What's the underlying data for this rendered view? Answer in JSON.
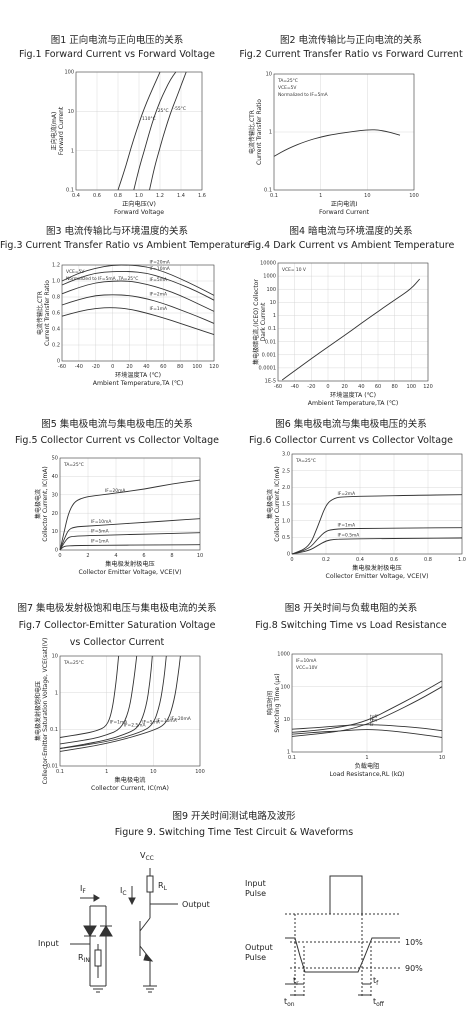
{
  "chart_data": [
    {
      "id": "fig1",
      "type": "line",
      "title_cn": "图1 正向电流与正向电压的关系",
      "title": "Fig.1 Forward Current vs Forward Voltage",
      "ylabel_cn": "正向电流(mA)",
      "ylabel": "Forward Current",
      "xlabel_cn": "正向电压(V)",
      "xlabel": "Forward Voltage",
      "xlim": [
        0.4,
        1.6
      ],
      "ylim": [
        0.1,
        100
      ],
      "yscale": "log",
      "x_ticks": [
        "0.4",
        "0.6",
        "0.8",
        "1.0",
        "1.2",
        "1.4",
        "1.6"
      ],
      "y_ticks": [
        "0.1",
        "1",
        "10",
        "100"
      ],
      "series": [
        {
          "name": "110°C",
          "x": [
            0.8,
            0.85,
            0.9,
            0.95,
            1.0,
            1.05,
            1.1,
            1.15,
            1.2
          ],
          "y": [
            0.1,
            0.25,
            0.7,
            2,
            5,
            12,
            25,
            50,
            100
          ]
        },
        {
          "name": "25°C",
          "x": [
            0.95,
            1.0,
            1.05,
            1.1,
            1.15,
            1.2,
            1.25,
            1.3,
            1.35
          ],
          "y": [
            0.1,
            0.35,
            1,
            3,
            8,
            18,
            35,
            65,
            100
          ]
        },
        {
          "name": "-55°C",
          "x": [
            1.1,
            1.15,
            1.2,
            1.25,
            1.3,
            1.35,
            1.4,
            1.45
          ],
          "y": [
            0.1,
            0.4,
            1.2,
            3.5,
            9,
            20,
            45,
            100
          ]
        }
      ]
    },
    {
      "id": "fig2",
      "type": "line",
      "title_cn": "图2 电流传输比与正向电流的关系",
      "title": "Fig.2  Current Transfer Ratio vs Forward Current",
      "ylabel_cn": "电流传输比,CTR",
      "ylabel": "Current Transfer Ratio",
      "xlabel_cn": "正向电流I",
      "xlabel": "Forward Current",
      "xlim": [
        0.1,
        100
      ],
      "xscale": "log",
      "ylim": [
        0.1,
        10
      ],
      "yscale": "log",
      "x_ticks": [
        "0.1",
        "1",
        "10",
        "100"
      ],
      "y_ticks": [
        "0.1",
        "1",
        "10"
      ],
      "annotations": [
        "TA=25°C",
        "VCE=5V",
        "Normalized to IF=5mA"
      ],
      "series": [
        {
          "name": "CTR",
          "x": [
            0.1,
            0.2,
            0.5,
            1,
            2,
            5,
            10,
            20,
            50
          ],
          "y": [
            0.38,
            0.52,
            0.7,
            0.82,
            0.92,
            1.02,
            1.1,
            1.08,
            0.88
          ]
        }
      ]
    },
    {
      "id": "fig3",
      "type": "line",
      "title_cn": "图3 电流传输比与环境温度的关系",
      "title": "Fig.3 Current Transfer Ratio vs  Ambient Temperature",
      "ylabel_cn": "电流传输比,CTR",
      "ylabel": "Current Transfer Ratio",
      "xlabel_cn": "环境温度TA (℃)",
      "xlabel": "Ambient Temperature,TA (℃)",
      "xlim": [
        -60,
        120
      ],
      "ylim": [
        0,
        1.2
      ],
      "x_ticks": [
        "-60",
        "-40",
        "-20",
        "0",
        "20",
        "40",
        "60",
        "80",
        "100",
        "120"
      ],
      "y_ticks": [
        "0",
        "0.2",
        "0.4",
        "0.6",
        "0.8",
        "1.0",
        "1.2"
      ],
      "annotations": [
        "VCE=5V",
        "Normalized to IF=5mA ,TA=25°C"
      ],
      "series": [
        {
          "name": "IF=20mA",
          "x": [
            -60,
            -40,
            -20,
            0,
            20,
            40,
            60,
            80,
            100,
            120
          ],
          "y": [
            1.0,
            1.1,
            1.16,
            1.2,
            1.2,
            1.18,
            1.12,
            1.03,
            0.93,
            0.82
          ]
        },
        {
          "name": "IF=10mA",
          "x": [
            -60,
            -40,
            -20,
            0,
            20,
            40,
            60,
            80,
            100,
            120
          ],
          "y": [
            0.95,
            1.04,
            1.1,
            1.12,
            1.12,
            1.1,
            1.04,
            0.96,
            0.87,
            0.76
          ]
        },
        {
          "name": "IF=5mA",
          "x": [
            -60,
            -40,
            -20,
            0,
            20,
            40,
            60,
            80,
            100,
            120
          ],
          "y": [
            0.84,
            0.92,
            0.98,
            1.0,
            1.0,
            0.96,
            0.9,
            0.82,
            0.72,
            0.62
          ]
        },
        {
          "name": "IF=2mA",
          "x": [
            -60,
            -40,
            -20,
            0,
            20,
            40,
            60,
            80,
            100,
            120
          ],
          "y": [
            0.7,
            0.77,
            0.82,
            0.83,
            0.82,
            0.78,
            0.72,
            0.64,
            0.56,
            0.47
          ]
        },
        {
          "name": "IF=1mA",
          "x": [
            -60,
            -40,
            -20,
            0,
            20,
            40,
            60,
            80,
            100,
            120
          ],
          "y": [
            0.56,
            0.62,
            0.66,
            0.67,
            0.65,
            0.6,
            0.54,
            0.47,
            0.4,
            0.33
          ]
        }
      ]
    },
    {
      "id": "fig4",
      "type": "line",
      "title_cn": "图4 暗电流与环境温度的关系",
      "title": "Fig.4 Dark Current vs Ambient Temperature",
      "ylabel_cn": "集电极暗电流,(ICEO) Collector",
      "ylabel": "Dark Current",
      "xlabel_cn": "环境温度TA (℃)",
      "xlabel": "Ambient Temperature,TA (℃)",
      "xlim": [
        -60,
        120
      ],
      "ylim": [
        1e-05,
        10000
      ],
      "yscale": "log",
      "x_ticks": [
        "-60",
        "-40",
        "-20",
        "0",
        "20",
        "40",
        "60",
        "80",
        "100",
        "120"
      ],
      "y_ticks": [
        "1E-5",
        "0.0001",
        "0.001",
        "0.01",
        "0.1",
        "1",
        "10",
        "100",
        "1000",
        "10000"
      ],
      "annotations": [
        "VCE= 10 V"
      ],
      "series": [
        {
          "name": "ICEO",
          "x": [
            -55,
            -40,
            -20,
            0,
            20,
            40,
            60,
            80,
            100,
            110
          ],
          "y": [
            1.2e-05,
            6e-05,
            0.0005,
            0.004,
            0.03,
            0.25,
            2,
            15,
            110,
            600
          ]
        }
      ]
    },
    {
      "id": "fig5",
      "type": "line",
      "title_cn": "图5 集电极电流与集电极电压的关系",
      "title": "Fig.5 Collector Current vs Collector Voltage",
      "ylabel_cn": "集电极电流",
      "ylabel": "Collector Current, IC(mA)",
      "xlabel_cn": "集电极发射极电压",
      "xlabel": "Collector Emitter Voltage, VCE(V)",
      "xlim": [
        0,
        10
      ],
      "ylim": [
        0,
        50
      ],
      "x_ticks": [
        "0",
        "2",
        "4",
        "6",
        "8",
        "10"
      ],
      "y_ticks": [
        "0",
        "10",
        "20",
        "30",
        "40",
        "50"
      ],
      "annotations": [
        "TA=25°C"
      ],
      "series": [
        {
          "name": "IF=20mA",
          "x": [
            0,
            0.3,
            0.6,
            1,
            1.5,
            2,
            3,
            4,
            6,
            8,
            10
          ],
          "y": [
            0,
            10,
            20,
            26,
            28,
            29,
            30,
            31,
            33,
            36,
            38
          ]
        },
        {
          "name": "IF=10mA",
          "x": [
            0,
            0.3,
            0.6,
            1,
            2,
            4,
            6,
            8,
            10
          ],
          "y": [
            0,
            6,
            11,
            12.5,
            13,
            14,
            15,
            16,
            17
          ]
        },
        {
          "name": "IF=5mA",
          "x": [
            0,
            0.3,
            0.6,
            1,
            2,
            4,
            6,
            8,
            10
          ],
          "y": [
            0,
            4,
            7,
            7.5,
            7.8,
            8.2,
            8.6,
            9,
            9.4
          ]
        },
        {
          "name": "IF=1mA",
          "x": [
            0,
            0.2,
            0.4,
            1,
            2,
            4,
            6,
            8,
            10
          ],
          "y": [
            0,
            1.5,
            2.2,
            2.4,
            2.5,
            2.6,
            2.7,
            2.8,
            2.9
          ]
        }
      ]
    },
    {
      "id": "fig6",
      "type": "line",
      "title_cn": "图6 集电极电流与集电极电压的关系",
      "title": "Fig.6 Collector Current vs Collector Voltage",
      "ylabel_cn": "集电极电流",
      "ylabel": "Collector Current, IC(mA)",
      "xlabel_cn": "集电极发射极电压",
      "xlabel": "Collector Emitter Voltage, VCE(V)",
      "xlim": [
        0,
        1.0
      ],
      "ylim": [
        0,
        3.0
      ],
      "x_ticks": [
        "0",
        "0.2",
        "0.4",
        "0.6",
        "0.8",
        "1.0"
      ],
      "y_ticks": [
        "0",
        "0.5",
        "1.0",
        "1.5",
        "2.0",
        "2.5",
        "3.0"
      ],
      "annotations": [
        "TA=25°C"
      ],
      "series": [
        {
          "name": "IF=2mA",
          "x": [
            0,
            0.1,
            0.15,
            0.2,
            0.25,
            0.3,
            0.5,
            0.7,
            1.0
          ],
          "y": [
            0,
            0.2,
            0.8,
            1.5,
            1.68,
            1.72,
            1.74,
            1.76,
            1.78
          ]
        },
        {
          "name": "IF=1mA",
          "x": [
            0,
            0.1,
            0.15,
            0.2,
            0.25,
            0.3,
            0.5,
            0.7,
            1.0
          ],
          "y": [
            0,
            0.15,
            0.45,
            0.7,
            0.74,
            0.76,
            0.77,
            0.78,
            0.79
          ]
        },
        {
          "name": "IF=0.5mA",
          "x": [
            0,
            0.1,
            0.15,
            0.2,
            0.25,
            0.3,
            0.5,
            0.7,
            1.0
          ],
          "y": [
            0,
            0.1,
            0.25,
            0.4,
            0.44,
            0.45,
            0.46,
            0.47,
            0.48
          ]
        }
      ]
    },
    {
      "id": "fig7",
      "type": "line",
      "title_cn": "图7 集电极发射极饱和电压与集电极电流的关系",
      "title": "Fig.7 Collector-Emitter Saturation Voltage",
      "title2": "vs Collector Current",
      "ylabel_cn": "集电极发射极饱和电压",
      "ylabel": "Collector-Emitter Saturation Voltage, VCE(sat)(V)",
      "xlabel_cn": "集电极电流",
      "xlabel": "Collector Current, IC(mA)",
      "xlim": [
        0.1,
        100
      ],
      "xscale": "log",
      "ylim": [
        0.01,
        10
      ],
      "yscale": "log",
      "x_ticks": [
        "0.1",
        "1",
        "10",
        "100"
      ],
      "y_ticks": [
        "0.01",
        "0.1",
        "1",
        "10"
      ],
      "annotations": [
        "TA=25°C"
      ],
      "series": [
        {
          "name": "IF=1mA",
          "x": [
            0.1,
            0.3,
            0.6,
            1,
            1.3,
            1.6,
            1.8
          ],
          "y": [
            0.06,
            0.075,
            0.09,
            0.12,
            0.3,
            2,
            10
          ]
        },
        {
          "name": "IF=2.5mA",
          "x": [
            0.1,
            0.5,
            1,
            2,
            3,
            3.8,
            4.4
          ],
          "y": [
            0.04,
            0.055,
            0.07,
            0.1,
            0.3,
            2,
            10
          ]
        },
        {
          "name": "IF=5mA",
          "x": [
            0.1,
            1,
            3,
            5,
            7,
            8.5,
            9.5
          ],
          "y": [
            0.03,
            0.05,
            0.08,
            0.12,
            0.4,
            2,
            10
          ]
        },
        {
          "name": "IF=10mA",
          "x": [
            0.1,
            1,
            5,
            10,
            14,
            17,
            19
          ],
          "y": [
            0.03,
            0.045,
            0.08,
            0.13,
            0.5,
            2.5,
            10
          ]
        },
        {
          "name": "IF=20mA",
          "x": [
            0.1,
            1,
            10,
            20,
            28,
            34,
            38
          ],
          "y": [
            0.025,
            0.04,
            0.09,
            0.15,
            0.6,
            3,
            10
          ]
        }
      ]
    },
    {
      "id": "fig8",
      "type": "line",
      "title_cn": "图8 开关时间与负载电阻的关系",
      "title": "Fig.8 Switching Time vs Load Resistance",
      "ylabel_cn": "响应时间",
      "ylabel": "Switching Time (μs)",
      "xlabel_cn": "负载电阻",
      "xlabel": "Load Resistance,RL (kΩ)",
      "xlim": [
        0.1,
        10
      ],
      "xscale": "log",
      "ylim": [
        1,
        1000
      ],
      "yscale": "log",
      "x_ticks": [
        "0.1",
        "1",
        "10"
      ],
      "y_ticks": [
        "1",
        "10",
        "100",
        "1000"
      ],
      "annotations": [
        "IF=10mA",
        "VCC=10V"
      ],
      "series": [
        {
          "name": "toff",
          "x": [
            0.1,
            0.2,
            0.5,
            1,
            2,
            5,
            10
          ],
          "y": [
            4,
            4.5,
            6,
            9,
            20,
            60,
            150
          ]
        },
        {
          "name": "tf",
          "x": [
            0.1,
            0.2,
            0.5,
            1,
            2,
            5,
            10
          ],
          "y": [
            3,
            3.5,
            4.5,
            7,
            14,
            40,
            100
          ]
        },
        {
          "name": "ton",
          "x": [
            0.1,
            0.2,
            0.5,
            1,
            2,
            5,
            10
          ],
          "y": [
            5,
            5.5,
            6.5,
            7,
            6.5,
            5.5,
            4.5
          ]
        },
        {
          "name": "tr",
          "x": [
            0.1,
            0.2,
            0.5,
            1,
            2,
            5,
            10
          ],
          "y": [
            3.5,
            4,
            4.5,
            5,
            4.5,
            3.5,
            2.8
          ]
        }
      ]
    }
  ],
  "fig9": {
    "title_cn": "图9 开关时间测试电路及波形",
    "title": "Figure 9. Switching Time Test Circuit & Waveforms",
    "vcc": "V",
    "vcc_sub": "CC",
    "rl": "R",
    "rl_sub": "L",
    "ic": "I",
    "ic_sub": "C",
    "if_label": "I",
    "if_sub": "F",
    "rin": "R",
    "rin_sub": "IN",
    "input_label": "Input",
    "output_label": "Output",
    "input_pulse": [
      "Input",
      "Pulse"
    ],
    "output_pulse": [
      "Output",
      "Pulse"
    ],
    "pct10": "10%",
    "pct90": "90%",
    "tr": "t",
    "tr_sub": "r",
    "tf": "t",
    "tf_sub": "f",
    "ton": "t",
    "ton_sub": "on",
    "toff": "t",
    "toff_sub": "off"
  }
}
